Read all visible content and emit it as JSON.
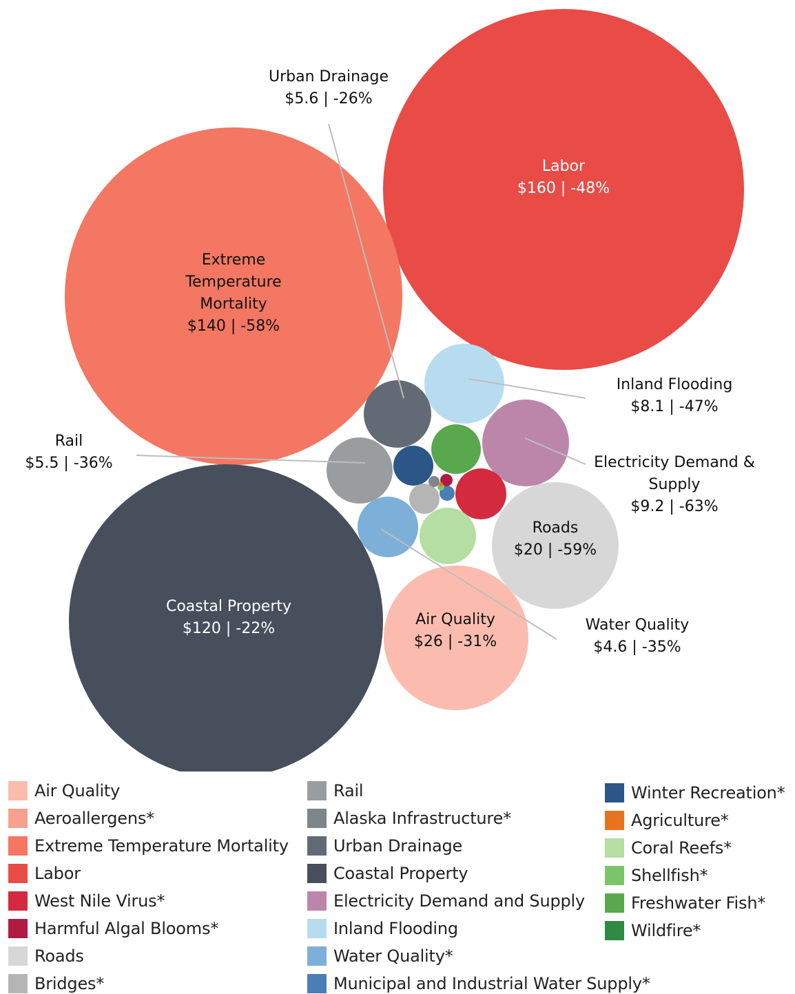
{
  "chart_data": {
    "type": "bubble",
    "title": "",
    "unit_note": "",
    "bubbles": [
      {
        "name": "Labor",
        "color": "#e94b47",
        "label_lines": [
          "Labor",
          "$160 | -48%"
        ],
        "label_color": "#ffffff"
      },
      {
        "name": "Extreme Temperature Mortality",
        "color": "#f37762",
        "label_lines": [
          "Extreme",
          "Temperature",
          "Mortality",
          "$140 | -58%"
        ],
        "label_color": "#111111"
      },
      {
        "name": "Coastal Property",
        "color": "#474e5c",
        "label_lines": [
          "Coastal Property",
          "$120 | -22%"
        ],
        "label_color": "#ffffff"
      },
      {
        "name": "Air Quality",
        "color": "#fbbcaf",
        "label_lines": [
          "Air Quality",
          "$26 | -31%"
        ],
        "label_color": "#111111"
      },
      {
        "name": "Roads",
        "color": "#d7d7d7",
        "label_lines": [
          "Roads",
          "$20 | -59%"
        ],
        "label_color": "#111111"
      },
      {
        "name": "Electricity Demand and Supply",
        "color": "#bc86aa",
        "label_lines": [],
        "label_color": "#111111"
      },
      {
        "name": "Inland Flooding",
        "color": "#b8dcef",
        "label_lines": [],
        "label_color": "#111111"
      },
      {
        "name": "Urban Drainage",
        "color": "#626b75",
        "label_lines": [],
        "label_color": "#111111"
      },
      {
        "name": "Rail",
        "color": "#9a9d9f",
        "label_lines": [],
        "label_color": "#111111"
      },
      {
        "name": "Water Quality*",
        "color": "#7db0d8",
        "label_lines": [],
        "label_color": "#111111"
      },
      {
        "name": "West Nile Virus*",
        "color": "#d42a3f",
        "label_lines": [],
        "label_color": "#111111"
      },
      {
        "name": "Freshwater Fish*",
        "color": "#5aa84e",
        "label_lines": [],
        "label_color": "#111111"
      },
      {
        "name": "Coral Reefs*",
        "color": "#b5dea2",
        "label_lines": [],
        "label_color": "#111111"
      },
      {
        "name": "Winter Recreation*",
        "color": "#2c5688",
        "label_lines": [],
        "label_color": "#111111"
      },
      {
        "name": "Bridges*",
        "color": "#b5b5b5",
        "label_lines": [],
        "label_color": "#111111"
      },
      {
        "name": "Municipal and Industrial Water Supply*",
        "color": "#4a7eb6",
        "label_lines": [],
        "label_color": "#111111"
      },
      {
        "name": "Harmful Algal Blooms*",
        "color": "#b01a45",
        "label_lines": [],
        "label_color": "#111111"
      },
      {
        "name": "Alaska Infrastructure*",
        "color": "#7f868b",
        "label_lines": [],
        "label_color": "#111111"
      },
      {
        "name": "Shellfish*",
        "color": "#7bc46c",
        "label_lines": [],
        "label_color": "#111111"
      },
      {
        "name": "Agriculture*",
        "color": "#e8731e",
        "label_lines": [],
        "label_color": "#111111"
      }
    ],
    "callouts": [
      {
        "target": "Urban Drainage",
        "label_lines": [
          "Urban Drainage",
          "$5.6 | -26%"
        ]
      },
      {
        "target": "Inland Flooding",
        "label_lines": [
          "Inland Flooding",
          "$8.1 | -47%"
        ]
      },
      {
        "target": "Electricity Demand and Supply",
        "label_lines": [
          "Electricity Demand &",
          "Supply",
          "$9.2 | -63%"
        ]
      },
      {
        "target": "Rail",
        "label_lines": [
          "Rail",
          "$5.5 | -36%"
        ]
      },
      {
        "target": "Water Quality*",
        "label_lines": [
          "Water Quality",
          "$4.6 | -35%"
        ]
      }
    ],
    "legend": [
      {
        "label": "Air Quality",
        "color": "#fbbcaf"
      },
      {
        "label": "Aeroallergens*",
        "color": "#f7a08f"
      },
      {
        "label": "Extreme Temperature Mortality",
        "color": "#f37762"
      },
      {
        "label": "Labor",
        "color": "#e94b47"
      },
      {
        "label": "West Nile Virus*",
        "color": "#d42a3f"
      },
      {
        "label": "Harmful Algal Blooms*",
        "color": "#b01a45"
      },
      {
        "label": "Roads",
        "color": "#d7d7d7"
      },
      {
        "label": "Bridges*",
        "color": "#b5b5b5"
      },
      {
        "label": "Rail",
        "color": "#9a9d9f"
      },
      {
        "label": "Alaska Infrastructure*",
        "color": "#7f868b"
      },
      {
        "label": "Urban Drainage",
        "color": "#626b75"
      },
      {
        "label": "Coastal Property",
        "color": "#474e5c"
      },
      {
        "label": "Electricity Demand and Supply",
        "color": "#bc86aa"
      },
      {
        "label": "Inland Flooding",
        "color": "#b8dcef"
      },
      {
        "label": "Water Quality*",
        "color": "#7db0d8"
      },
      {
        "label": "Municipal and Industrial Water Supply*",
        "color": "#4a7eb6"
      },
      {
        "label": "Winter Recreation*",
        "color": "#2c5688"
      },
      {
        "label": "Agriculture*",
        "color": "#e8731e"
      },
      {
        "label": "Coral Reefs*",
        "color": "#b5dea2"
      },
      {
        "label": "Shellfish*",
        "color": "#7bc46c"
      },
      {
        "label": "Freshwater Fish*",
        "color": "#5aa84e"
      },
      {
        "label": "Wildfire*",
        "color": "#2f8a45"
      }
    ]
  }
}
